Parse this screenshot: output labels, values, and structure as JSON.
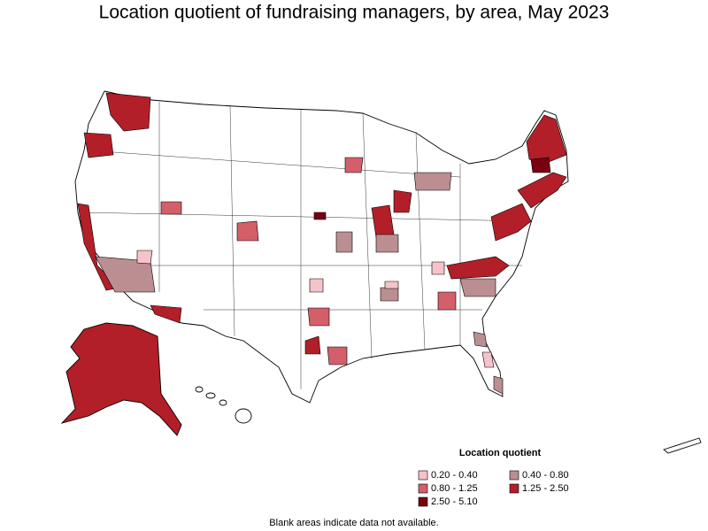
{
  "title": "Location quotient of fundraising managers, by area, May 2023",
  "legend": {
    "title": "Location quotient",
    "items": [
      {
        "label": "0.20 - 0.40",
        "color": "#f5c3c9"
      },
      {
        "label": "0.40 - 0.80",
        "color": "#bb8e92"
      },
      {
        "label": "0.80 - 1.25",
        "color": "#d25f69"
      },
      {
        "label": "1.25 - 2.50",
        "color": "#b21f28"
      },
      {
        "label": "2.50 - 5.10",
        "color": "#780010"
      }
    ]
  },
  "footnote": "Blank areas indicate data not available."
}
